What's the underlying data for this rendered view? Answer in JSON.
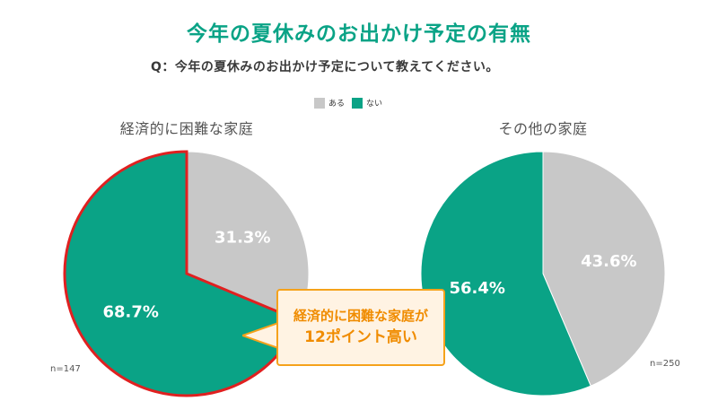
{
  "title": "今年の夏休みのお出かけ予定の有無",
  "question": "Q：今年の夏休みのお出かけ予定について教えてください。",
  "legend": [
    {
      "label": "ある",
      "color": "#c8c8c8"
    },
    {
      "label": "ない",
      "color": "#0aa386"
    }
  ],
  "callout": {
    "line1": "経済的に困難な家庭が",
    "line2": "12ポイント高い"
  },
  "chart_data": [
    {
      "type": "pie",
      "title": "経済的に困難な家庭",
      "n_label": "n=147",
      "categories": [
        "ある",
        "ない"
      ],
      "values": [
        31.3,
        68.7
      ],
      "value_labels": [
        "31.3%",
        "68.7%"
      ],
      "colors": [
        "#c8c8c8",
        "#0aa386"
      ],
      "highlight": "ない",
      "highlight_color": "#e02020"
    },
    {
      "type": "pie",
      "title": "その他の家庭",
      "n_label": "n=250",
      "categories": [
        "ある",
        "ない"
      ],
      "values": [
        43.6,
        56.4
      ],
      "value_labels": [
        "43.6%",
        "56.4%"
      ],
      "colors": [
        "#c8c8c8",
        "#0aa386"
      ]
    }
  ]
}
